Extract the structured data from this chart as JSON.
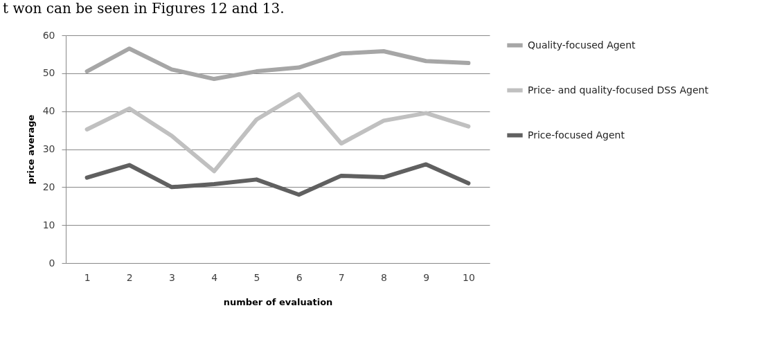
{
  "chart_data": {
    "type": "line",
    "xlabel": "number of evaluation",
    "ylabel": "price average",
    "annotations": [
      "t won can be seen in Figures 12 and 13."
    ],
    "categories": [
      "1",
      "2",
      "3",
      "4",
      "5",
      "6",
      "7",
      "8",
      "9",
      "10"
    ],
    "series": [
      {
        "name": "Quality-focused Agent",
        "color": "#a6a6a6",
        "values": [
          50.5,
          56.5,
          51,
          48.5,
          50.5,
          51.5,
          55.2,
          55.8,
          53.2,
          52.7
        ]
      },
      {
        "name": "Price- and quality-focused DSS Agent",
        "color": "#c0c0c0",
        "values": [
          35.2,
          40.7,
          33.5,
          24.2,
          37.8,
          44.5,
          31.5,
          37.5,
          39.5,
          36
        ]
      },
      {
        "name": "Price-focused Agent",
        "color": "#606060",
        "values": [
          22.5,
          25.8,
          20,
          20.8,
          22,
          18,
          23,
          22.6,
          26,
          21
        ]
      }
    ],
    "ylim": [
      0,
      60
    ],
    "yticks": [
      0,
      10,
      20,
      30,
      40,
      50,
      60
    ],
    "grid": "y",
    "legend": "right",
    "marker": "none",
    "line_style": "solid"
  }
}
